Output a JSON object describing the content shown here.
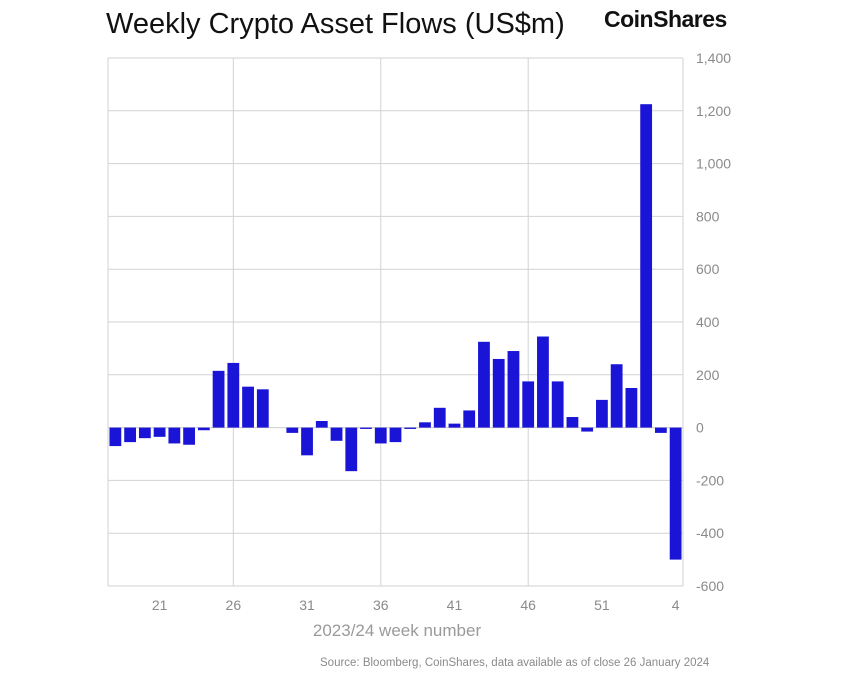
{
  "header": {
    "title": "Weekly Crypto Asset Flows (US$m)",
    "brand": "CoinShares"
  },
  "footer": {
    "source": "Source: Bloomberg, CoinShares, data available as of close 26 January 2024"
  },
  "colors": {
    "bar": "#1a14d6",
    "grid": "#d2d2d2",
    "axis": "#8a8a8a"
  },
  "chart_data": {
    "type": "bar",
    "title": "Weekly Crypto Asset Flows (US$m)",
    "xlabel": "2023/24 week number",
    "ylabel": "",
    "ylim": [
      -600,
      1400
    ],
    "y_ticks": [
      1400,
      1200,
      1000,
      800,
      600,
      400,
      200,
      0,
      -200,
      -400,
      -600
    ],
    "y_tick_labels": [
      "1,400",
      "1,200",
      "1,000",
      "800",
      "600",
      "400",
      "200",
      "0",
      "-200",
      "-400",
      "-600"
    ],
    "x_tick_labels": [
      "21",
      "26",
      "31",
      "36",
      "41",
      "46",
      "51",
      "4"
    ],
    "x_tick_indices": [
      3,
      8,
      13,
      18,
      23,
      28,
      33,
      38
    ],
    "categories": [
      "18",
      "19",
      "20",
      "21",
      "22",
      "23",
      "24",
      "25",
      "26",
      "27",
      "28",
      "29",
      "30",
      "31",
      "32",
      "33",
      "34",
      "35",
      "36",
      "37",
      "38",
      "39",
      "40",
      "41",
      "42",
      "43",
      "44",
      "45",
      "46",
      "47",
      "48",
      "49",
      "50",
      "51",
      "52",
      "1",
      "2",
      "3",
      "4"
    ],
    "values": [
      -70,
      -55,
      -40,
      -35,
      -60,
      -65,
      -10,
      215,
      245,
      155,
      145,
      0,
      -20,
      -105,
      25,
      -50,
      -165,
      -5,
      -60,
      -55,
      -5,
      20,
      75,
      15,
      65,
      325,
      260,
      290,
      175,
      345,
      175,
      40,
      -15,
      105,
      240,
      150,
      1225,
      -20,
      -500
    ]
  }
}
